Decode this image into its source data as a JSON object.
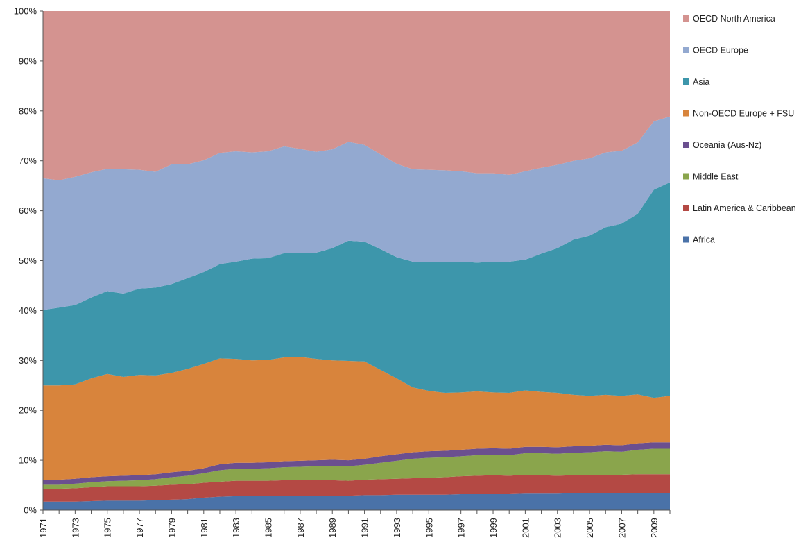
{
  "chart_data": {
    "type": "area",
    "stacked": true,
    "percent": true,
    "title": "",
    "xlabel": "",
    "ylabel": "",
    "ylim": [
      0,
      100
    ],
    "yticks": [
      "0%",
      "10%",
      "20%",
      "30%",
      "40%",
      "50%",
      "60%",
      "70%",
      "80%",
      "90%",
      "100%"
    ],
    "x": [
      1971,
      1972,
      1973,
      1974,
      1975,
      1976,
      1977,
      1978,
      1979,
      1980,
      1981,
      1982,
      1983,
      1984,
      1985,
      1986,
      1987,
      1988,
      1989,
      1990,
      1991,
      1992,
      1993,
      1994,
      1995,
      1996,
      1997,
      1998,
      1999,
      2000,
      2001,
      2002,
      2003,
      2004,
      2005,
      2006,
      2007,
      2008,
      2009,
      2010
    ],
    "xtick_labels": [
      "1971",
      "1973",
      "1975",
      "1977",
      "1979",
      "1981",
      "1983",
      "1985",
      "1987",
      "1989",
      "1991",
      "1993",
      "1995",
      "1997",
      "1999",
      "2001",
      "2003",
      "2005",
      "2007",
      "2009"
    ],
    "legend_position": "right",
    "series": [
      {
        "name": "Africa",
        "color": "#4a72a8",
        "values": [
          1.7,
          1.7,
          1.7,
          1.8,
          1.9,
          1.9,
          1.9,
          2.0,
          2.1,
          2.2,
          2.5,
          2.7,
          2.8,
          2.8,
          2.9,
          2.9,
          2.9,
          2.9,
          2.9,
          2.9,
          3.0,
          3.0,
          3.1,
          3.1,
          3.1,
          3.1,
          3.2,
          3.2,
          3.2,
          3.2,
          3.3,
          3.3,
          3.3,
          3.4,
          3.4,
          3.4,
          3.4,
          3.4,
          3.4,
          3.4
        ]
      },
      {
        "name": "Latin America & Caribbean",
        "color": "#b44944",
        "values": [
          2.6,
          2.6,
          2.7,
          2.8,
          2.9,
          2.9,
          2.9,
          2.9,
          3.0,
          3.0,
          3.0,
          3.0,
          3.1,
          3.1,
          3.0,
          3.1,
          3.1,
          3.1,
          3.1,
          3.0,
          3.1,
          3.2,
          3.2,
          3.3,
          3.4,
          3.5,
          3.6,
          3.7,
          3.8,
          3.7,
          3.8,
          3.7,
          3.6,
          3.6,
          3.6,
          3.7,
          3.7,
          3.8,
          3.8,
          3.8
        ]
      },
      {
        "name": "Middle East",
        "color": "#8aa54c",
        "values": [
          0.8,
          0.8,
          0.9,
          1.0,
          1.0,
          1.1,
          1.2,
          1.3,
          1.5,
          1.7,
          1.9,
          2.3,
          2.4,
          2.4,
          2.5,
          2.6,
          2.7,
          2.8,
          2.9,
          2.9,
          3.0,
          3.3,
          3.6,
          3.9,
          4.0,
          4.0,
          4.0,
          4.1,
          4.1,
          4.1,
          4.3,
          4.4,
          4.4,
          4.5,
          4.6,
          4.7,
          4.6,
          4.9,
          5.1,
          5.1
        ]
      },
      {
        "name": "Oceania (Aus-Nz)",
        "color": "#6b4f8f",
        "values": [
          1.0,
          1.0,
          1.0,
          1.0,
          1.0,
          1.0,
          1.0,
          1.0,
          1.0,
          1.0,
          1.0,
          1.2,
          1.2,
          1.2,
          1.2,
          1.2,
          1.2,
          1.2,
          1.2,
          1.2,
          1.2,
          1.3,
          1.3,
          1.3,
          1.3,
          1.3,
          1.3,
          1.3,
          1.3,
          1.3,
          1.3,
          1.3,
          1.3,
          1.3,
          1.3,
          1.3,
          1.3,
          1.3,
          1.3,
          1.3
        ]
      },
      {
        "name": "Non-OECD Europe + FSU",
        "color": "#d8843c",
        "values": [
          18.9,
          18.9,
          18.9,
          19.8,
          20.5,
          19.8,
          20.1,
          19.8,
          19.9,
          20.4,
          20.9,
          21.2,
          20.8,
          20.5,
          20.5,
          20.8,
          20.8,
          20.3,
          19.9,
          19.9,
          19.5,
          17.3,
          15.2,
          13.0,
          12.1,
          11.6,
          11.5,
          11.5,
          11.2,
          11.2,
          11.3,
          11.0,
          10.9,
          10.3,
          10.0,
          10.0,
          9.9,
          9.8,
          8.9,
          9.3
        ]
      },
      {
        "name": "Asia",
        "color": "#3d96ab",
        "values": [
          15.1,
          15.6,
          15.9,
          16.2,
          16.6,
          16.7,
          17.3,
          17.6,
          17.8,
          18.2,
          18.4,
          18.9,
          19.5,
          20.4,
          20.4,
          20.9,
          20.8,
          21.3,
          22.5,
          24.1,
          24.0,
          24.2,
          24.3,
          25.2,
          25.9,
          26.3,
          26.2,
          25.8,
          26.2,
          26.3,
          26.2,
          27.7,
          29.0,
          31.1,
          32.1,
          33.6,
          34.5,
          36.2,
          41.7,
          42.8
        ]
      },
      {
        "name": "OECD Europe",
        "color": "#93a9d0",
        "values": [
          26.4,
          25.5,
          25.7,
          25.1,
          24.5,
          24.9,
          23.8,
          23.2,
          24.0,
          22.8,
          22.4,
          22.3,
          22.1,
          21.3,
          21.4,
          21.4,
          20.9,
          20.2,
          19.8,
          19.8,
          19.4,
          19.0,
          18.7,
          18.5,
          18.4,
          18.3,
          18.1,
          17.9,
          17.7,
          17.4,
          17.7,
          17.2,
          16.7,
          15.8,
          15.5,
          15.0,
          14.6,
          14.3,
          13.7,
          13.2
        ]
      },
      {
        "name": "OECD North America",
        "color": "#d49390",
        "values": [
          33.5,
          33.9,
          33.2,
          32.3,
          31.6,
          31.7,
          31.8,
          31.8,
          30.7,
          30.7,
          29.9,
          28.4,
          28.1,
          28.3,
          28.1,
          27.1,
          27.5,
          28.2,
          27.7,
          26.9,
          26.8,
          27.0,
          27.8,
          28.1,
          27.8,
          27.9,
          28.1,
          28.5,
          28.5,
          28.8,
          28.1,
          27.4,
          26.8,
          26.0,
          25.5,
          24.3,
          24.0,
          22.3,
          21.1,
          21.1
        ]
      }
    ]
  }
}
